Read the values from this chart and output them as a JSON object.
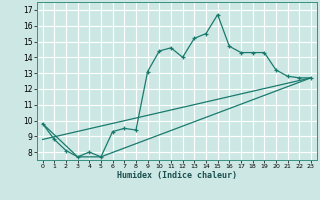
{
  "xlabel": "Humidex (Indice chaleur)",
  "bg_color": "#cde8e4",
  "grid_color": "#ffffff",
  "line_color": "#1a7a6e",
  "xlim": [
    -0.5,
    23.5
  ],
  "ylim": [
    7.5,
    17.5
  ],
  "yticks": [
    8,
    9,
    10,
    11,
    12,
    13,
    14,
    15,
    16,
    17
  ],
  "xticks": [
    0,
    1,
    2,
    3,
    4,
    5,
    6,
    7,
    8,
    9,
    10,
    11,
    12,
    13,
    14,
    15,
    16,
    17,
    18,
    19,
    20,
    21,
    22,
    23
  ],
  "line1_x": [
    0,
    1,
    2,
    3,
    4,
    5,
    6,
    7,
    8,
    9,
    10,
    11,
    12,
    13,
    14,
    15,
    16,
    17,
    18,
    19,
    20,
    21,
    22,
    23
  ],
  "line1_y": [
    9.8,
    8.8,
    8.1,
    7.7,
    8.0,
    7.7,
    9.3,
    9.5,
    9.4,
    13.1,
    14.4,
    14.6,
    14.0,
    15.2,
    15.5,
    16.7,
    14.7,
    14.3,
    14.3,
    14.3,
    13.2,
    12.8,
    12.7,
    12.7
  ],
  "line2_x": [
    0,
    3,
    5,
    23
  ],
  "line2_y": [
    9.8,
    7.7,
    7.7,
    12.7
  ],
  "line3_x": [
    0,
    23
  ],
  "line3_y": [
    8.8,
    12.7
  ]
}
